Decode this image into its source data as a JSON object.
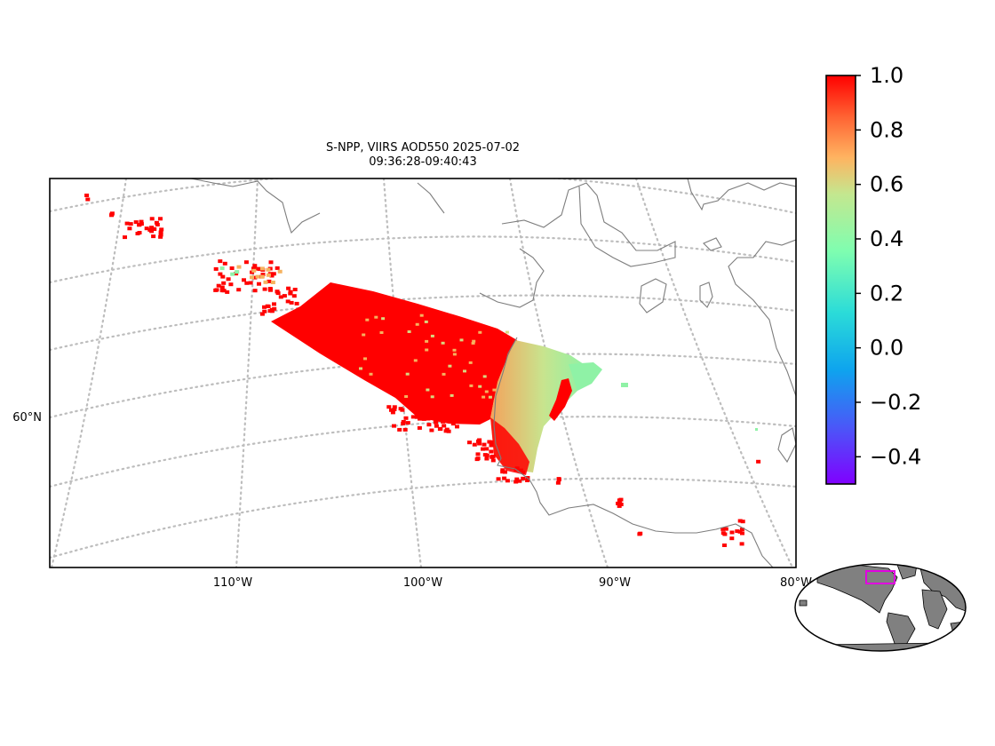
{
  "title": {
    "line1": "S-NPP, VIIRS AOD550 2025-07-02",
    "line2": "09:36:28-09:40:43"
  },
  "lon_labels": [
    "110°W",
    "100°W",
    "90°W",
    "80°W"
  ],
  "lat_labels": [
    "60°N"
  ],
  "colorbar": {
    "colormap": "rainbow",
    "vmin": -0.5,
    "vmax": 1.0,
    "ticks": [
      "1.0",
      "0.8",
      "0.6",
      "0.4",
      "0.2",
      "0.0",
      "−0.2",
      "−0.4"
    ]
  },
  "colors": {
    "aod_high": "#ff0000",
    "aod_mid": "#f6b25f",
    "aod_low": "#8ff2a6",
    "coastline": "#7d7d7d",
    "gridlines": "#bdbdbd",
    "inset_land": "#808080",
    "inset_extent_box": "#e000e0"
  },
  "inset": {
    "name": "global-locator-map"
  }
}
